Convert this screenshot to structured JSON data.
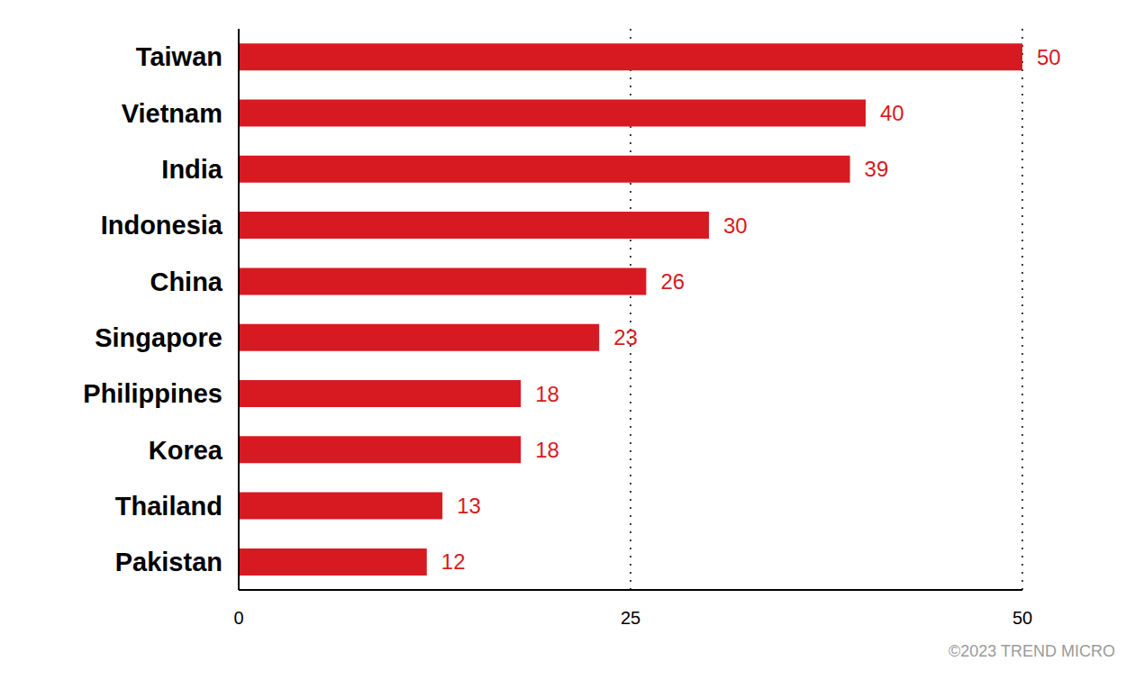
{
  "chart_data": {
    "type": "bar",
    "orientation": "horizontal",
    "categories": [
      "Taiwan",
      "Vietnam",
      "India",
      "Indonesia",
      "China",
      "Singapore",
      "Philippines",
      "Korea",
      "Thailand",
      "Pakistan"
    ],
    "values": [
      50,
      40,
      39,
      30,
      26,
      23,
      18,
      18,
      13,
      12
    ],
    "color": "#d71a21",
    "xlim": [
      0,
      50
    ],
    "xticks": [
      0,
      25,
      50
    ],
    "grid": true,
    "data_labels": true,
    "annotations": [
      "©2023 TREND MICRO"
    ]
  }
}
